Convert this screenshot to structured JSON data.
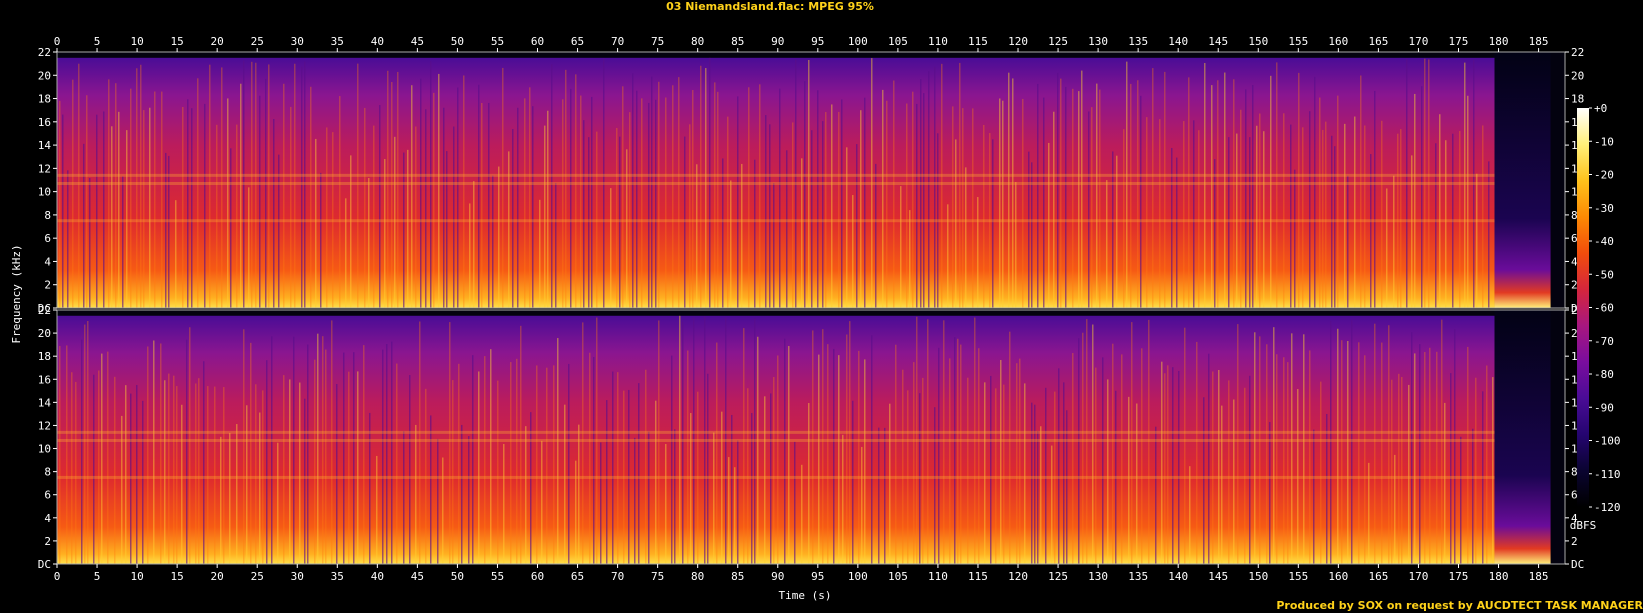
{
  "title": "03 Niemandsland.flac: MPEG 95%",
  "footer": "Produced by SOX on request by AUCDTECT TASK MANAGER",
  "chart_data": {
    "type": "heatmap",
    "title": "03 Niemandsland.flac: MPEG 95%",
    "xlabel": "Time (s)",
    "ylabel": "Frequency (kHz)",
    "x_ticks": [
      0,
      5,
      10,
      15,
      20,
      25,
      30,
      35,
      40,
      45,
      50,
      55,
      60,
      65,
      70,
      75,
      80,
      85,
      90,
      95,
      100,
      105,
      110,
      115,
      120,
      125,
      130,
      135,
      140,
      145,
      150,
      155,
      160,
      165,
      170,
      175,
      180,
      185
    ],
    "xlim": [
      0,
      188.3
    ],
    "channels": [
      {
        "y_ticks": [
          "DC",
          "2",
          "4",
          "6",
          "8",
          "10",
          "12",
          "14",
          "16",
          "18",
          "20",
          "22"
        ]
      },
      {
        "y_ticks": [
          "DC",
          "2",
          "4",
          "6",
          "8",
          "10",
          "12",
          "14",
          "16",
          "18",
          "20",
          "22"
        ]
      }
    ],
    "ylim": [
      0,
      22
    ],
    "audio_end_s": 179.5,
    "frequency_cutoff_khz": 21.5,
    "colorbar": {
      "label": "dBFS",
      "ticks": [
        "+0",
        "-10",
        "-20",
        "-30",
        "-40",
        "-50",
        "-60",
        "-70",
        "-80",
        "-90",
        "-100",
        "-110",
        "-120"
      ],
      "range": [
        -120,
        0
      ],
      "colors": [
        "#000000",
        "#0a0430",
        "#250570",
        "#4a0c96",
        "#7a0d9e",
        "#a8177f",
        "#d5263c",
        "#f24d0c",
        "#fc8a03",
        "#fec21c",
        "#fff07a",
        "#ffffff"
      ]
    }
  }
}
